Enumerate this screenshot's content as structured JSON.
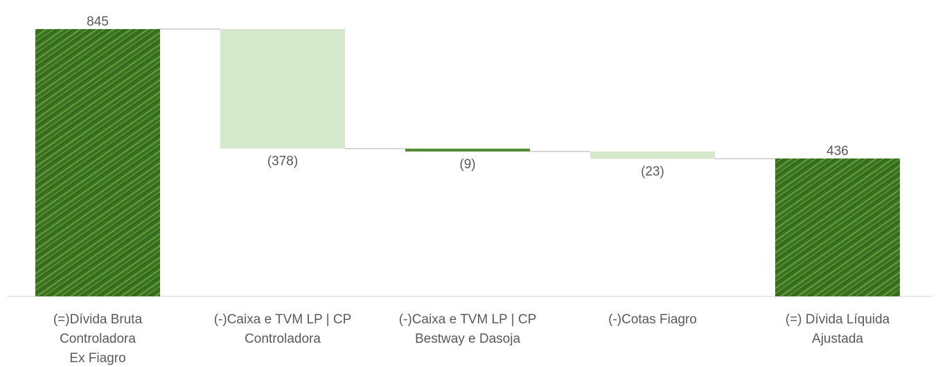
{
  "chart_data": {
    "type": "bar",
    "subtype": "waterfall",
    "categories": [
      [
        "(=)Dívida Bruta",
        "Controladora",
        "Ex Fiagro"
      ],
      [
        "(-)Caixa e TVM LP | CP",
        "Controladora"
      ],
      [
        "(-)Caixa e TVM LP | CP",
        "Bestway e Dasoja"
      ],
      [
        "(-)Cotas Fiagro"
      ],
      [
        "(=) Dívida Líquida",
        "Ajustada"
      ]
    ],
    "values": [
      845,
      -378,
      -9,
      -23,
      436
    ],
    "value_labels": [
      "845",
      "(378)",
      "(9)",
      "(23)",
      "436"
    ],
    "kinds": [
      "total",
      "decrease",
      "decrease",
      "decrease",
      "total"
    ],
    "colors": {
      "total": "#3f7a23",
      "total_hatch": "#74a84a",
      "decrease_light": "#d5e8cc",
      "decrease_dark": "#4f8a30",
      "connector": "#c8c8c8",
      "axis": "#d0d0d0",
      "text": "#595959"
    },
    "ylim": [
      0,
      900
    ],
    "grid": false,
    "legend": "none",
    "title": "",
    "xlabel": "",
    "ylabel": ""
  }
}
